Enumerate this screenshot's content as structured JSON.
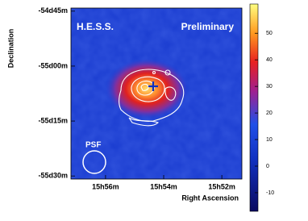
{
  "chart_data": {
    "type": "skymap",
    "annotations": [
      "H.E.S.S.",
      "Preliminary",
      "PSF"
    ],
    "xlabel": "Right Ascension",
    "ylabel": "Declination",
    "xlim": [
      57.19,
      51.31
    ],
    "xticks": [
      {
        "value": 56,
        "label": "15h56m"
      },
      {
        "value": 54,
        "label": "15h54m"
      },
      {
        "value": 52,
        "label": "15h52m"
      }
    ],
    "ylim": [
      -54.736,
      -55.514
    ],
    "yticks": [
      {
        "value": -54.75,
        "label": "-54d45m"
      },
      {
        "value": -55,
        "label": "-55d00m"
      },
      {
        "value": -55.25,
        "label": "-55d15m"
      },
      {
        "value": -55.5,
        "label": "-55d30m"
      }
    ],
    "colorbar": {
      "lim": [
        -17,
        61
      ],
      "ticks": [
        -10,
        0,
        10,
        20,
        30,
        40,
        50
      ]
    }
  }
}
